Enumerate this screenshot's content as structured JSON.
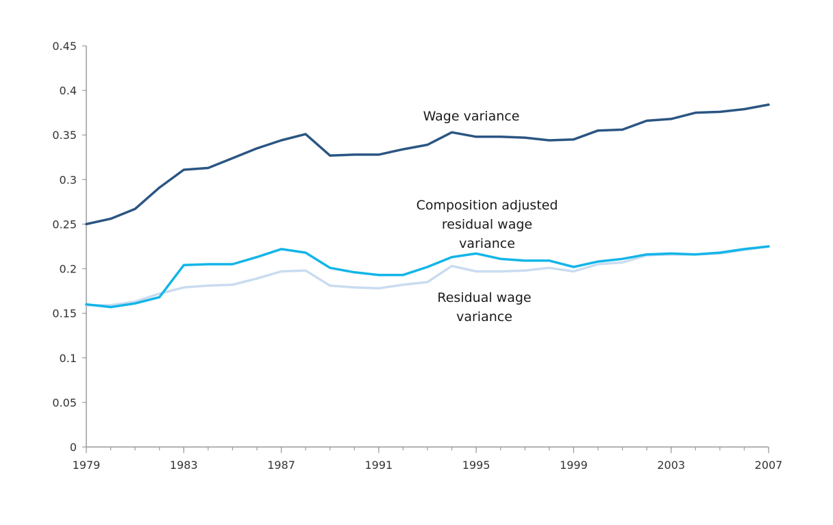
{
  "chart_data": {
    "type": "line",
    "title": "",
    "xlabel": "",
    "ylabel": "",
    "x": [
      1979,
      1980,
      1981,
      1982,
      1983,
      1984,
      1985,
      1986,
      1987,
      1988,
      1989,
      1990,
      1991,
      1992,
      1993,
      1994,
      1995,
      1996,
      1997,
      1998,
      1999,
      2000,
      2001,
      2002,
      2003,
      2004,
      2005,
      2006,
      2007
    ],
    "xlim": [
      1979,
      2007
    ],
    "ylim": [
      0,
      0.45
    ],
    "x_ticks": [
      1979,
      1983,
      1987,
      1991,
      1995,
      1999,
      2003,
      2007
    ],
    "x_tick_labels": [
      "1979",
      "1983",
      "1987",
      "1991",
      "1995",
      "1999",
      "2003",
      "2007"
    ],
    "y_ticks": [
      0,
      0.05,
      0.1,
      0.15,
      0.2,
      0.25,
      0.3,
      0.35,
      0.4,
      0.45
    ],
    "y_tick_labels": [
      "0",
      "0.05",
      "0.1",
      "0.15",
      "0.2",
      "0.25",
      "0.3",
      "0.35",
      "0.4",
      "0.45"
    ],
    "grid": false,
    "legend": "none",
    "series": [
      {
        "name": "Wage variance",
        "label_lines": [
          "Wage variance"
        ],
        "color": "#2b5583",
        "values": [
          0.25,
          0.256,
          0.267,
          0.291,
          0.311,
          0.313,
          0.324,
          0.335,
          0.344,
          0.351,
          0.327,
          0.328,
          0.328,
          0.334,
          0.339,
          0.353,
          0.348,
          0.348,
          0.347,
          0.344,
          0.345,
          0.355,
          0.356,
          0.366,
          0.368,
          0.375,
          0.376,
          0.379,
          0.384
        ]
      },
      {
        "name": "Composition adjusted residual wage variance",
        "label_lines": [
          "Composition adjusted",
          "residual wage",
          "variance"
        ],
        "color": "#12b5e8",
        "values": [
          0.16,
          0.157,
          0.161,
          0.168,
          0.204,
          0.205,
          0.205,
          0.213,
          0.222,
          0.218,
          0.201,
          0.196,
          0.193,
          0.193,
          0.202,
          0.213,
          0.217,
          0.211,
          0.209,
          0.209,
          0.202,
          0.208,
          0.211,
          0.216,
          0.217,
          0.216,
          0.218,
          0.222,
          0.225
        ]
      },
      {
        "name": "Residual wage variance",
        "label_lines": [
          "Residual wage",
          "variance"
        ],
        "color": "#c9dcf0",
        "values": [
          0.159,
          0.159,
          0.163,
          0.172,
          0.179,
          0.181,
          0.182,
          0.189,
          0.197,
          0.198,
          0.181,
          0.179,
          0.178,
          0.182,
          0.185,
          0.203,
          0.197,
          0.197,
          0.198,
          0.201,
          0.197,
          0.205,
          0.207,
          0.215,
          0.216,
          0.216,
          0.217,
          0.221,
          0.225
        ]
      }
    ]
  }
}
